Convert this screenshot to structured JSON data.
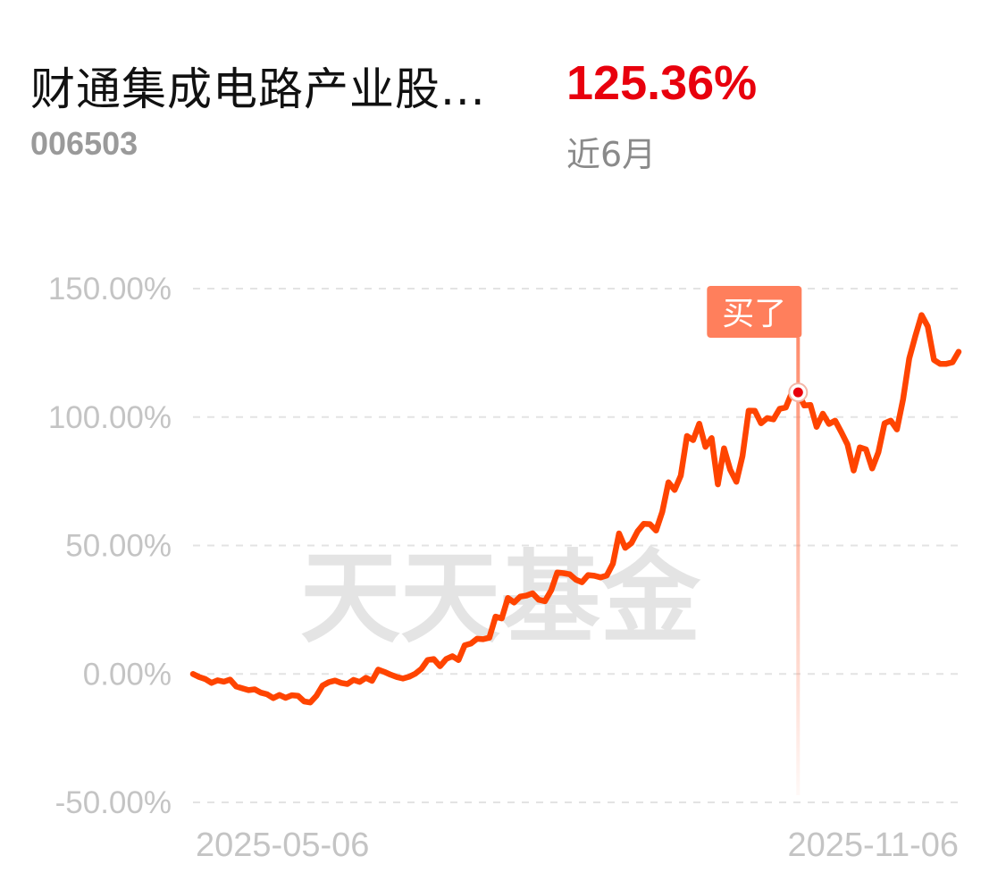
{
  "header": {
    "fund_name": "财通集成电路产业股...",
    "fund_code": "006503",
    "return_value": "125.36%",
    "return_period": "近6月"
  },
  "watermark": "天天基金",
  "colors": {
    "line": "#ff4400",
    "return": "#e8000d",
    "marker": "#ff7f5c",
    "grid": "#e3e3e3"
  },
  "chart_data": {
    "type": "line",
    "title": "",
    "xlabel": "",
    "ylabel": "",
    "ylim": [
      -50,
      150
    ],
    "yticks": [
      150,
      100,
      50,
      0,
      -50
    ],
    "ytick_labels": [
      "150.00%",
      "100.00%",
      "50.00%",
      "0.00%",
      "-50.00%"
    ],
    "x_start": "2025-05-06",
    "x_end": "2025-11-06",
    "xtick_labels": [
      "2025-05-06",
      "2025-11-06"
    ],
    "grid": true,
    "series": [
      {
        "values": [
          0.0,
          -1.2,
          -2.0,
          -3.5,
          -2.5,
          -3.0,
          -2.2,
          -4.9,
          -5.6,
          -6.3,
          -6.0,
          -7.3,
          -7.9,
          -9.4,
          -8.2,
          -9.3,
          -8.3,
          -8.5,
          -10.7,
          -11.1,
          -8.5,
          -4.5,
          -3.2,
          -2.6,
          -3.5,
          -3.9,
          -2.3,
          -3.1,
          -1.5,
          -2.7,
          1.7,
          0.8,
          -0.3,
          -1.2,
          -1.8,
          -1.1,
          0.1,
          2.0,
          5.4,
          5.8,
          3.0,
          5.8,
          6.9,
          5.4,
          11.1,
          11.8,
          13.7,
          13.5,
          14.1,
          22.3,
          21.6,
          29.6,
          27.8,
          30.1,
          30.5,
          31.4,
          28.9,
          28.3,
          32.5,
          39.5,
          39.2,
          38.8,
          36.7,
          35.7,
          38.5,
          38.2,
          37.6,
          38.3,
          42.9,
          54.7,
          49.1,
          50.9,
          55.5,
          58.4,
          58.3,
          55.8,
          63.1,
          74.6,
          71.6,
          77.2,
          92.6,
          91.0,
          97.4,
          88.4,
          91.8,
          73.8,
          87.8,
          79.5,
          74.8,
          84.9,
          102.5,
          102.4,
          97.6,
          99.6,
          99.1,
          103.2,
          103.7,
          109.6,
          109.6,
          104.5,
          104.7,
          96.2,
          101.3,
          97.3,
          98.6,
          94.1,
          89.3,
          79.2,
          88.2,
          87.4,
          80.0,
          86.3,
          97.6,
          98.6,
          95.2,
          106.9,
          122.8,
          131.6,
          139.7,
          135.3,
          122.2,
          120.7,
          120.7,
          121.3,
          125.4
        ]
      }
    ],
    "annotations": [
      {
        "text": "买了",
        "index": 98,
        "value": 109.6
      }
    ]
  }
}
